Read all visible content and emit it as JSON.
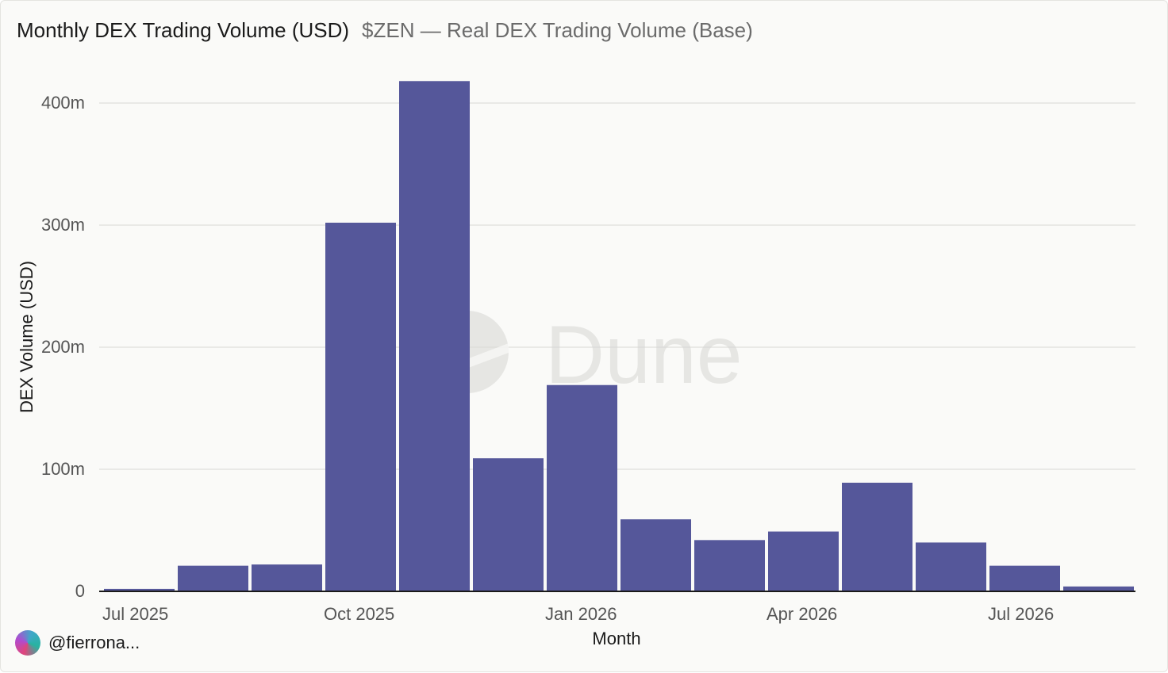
{
  "header": {
    "title": "Monthly DEX Trading Volume (USD)",
    "subtitle": "$ZEN — Real DEX Trading Volume (Base)"
  },
  "footer": {
    "author": "@fierrona..."
  },
  "watermark": {
    "text": "Dune"
  },
  "colors": {
    "bar": "#55579a",
    "grid": "#e3e3df",
    "axis": "#1a1a1a",
    "tick_text": "#555555"
  },
  "chart_data": {
    "type": "bar",
    "title": "Monthly DEX Trading Volume (USD)",
    "subtitle": "$ZEN — Real DEX Trading Volume (Base)",
    "xlabel": "Month",
    "ylabel": "DEX Volume (USD)",
    "ylim": [
      0,
      420000000
    ],
    "grid": true,
    "categories": [
      "2025-07",
      "2025-08",
      "2025-09",
      "2025-10",
      "2025-11",
      "2025-12",
      "2026-01",
      "2026-02",
      "2026-03",
      "2026-04",
      "2026-05",
      "2026-06",
      "2026-07",
      "2026-08"
    ],
    "values": [
      2000000,
      21000000,
      22000000,
      302000000,
      418000000,
      109000000,
      169000000,
      59000000,
      42000000,
      49000000,
      89000000,
      40000000,
      21000000,
      4000000
    ],
    "x_ticks": [
      {
        "label": "Jul 2025",
        "category": "2025-07"
      },
      {
        "label": "Oct 2025",
        "category": "2025-10"
      },
      {
        "label": "Jan 2026",
        "category": "2026-01"
      },
      {
        "label": "Apr 2026",
        "category": "2026-04"
      },
      {
        "label": "Jul 2026",
        "category": "2026-07"
      }
    ],
    "y_ticks": [
      {
        "label": "0",
        "value": 0
      },
      {
        "label": "100m",
        "value": 100000000
      },
      {
        "label": "200m",
        "value": 200000000
      },
      {
        "label": "300m",
        "value": 300000000
      },
      {
        "label": "400m",
        "value": 400000000
      }
    ]
  }
}
